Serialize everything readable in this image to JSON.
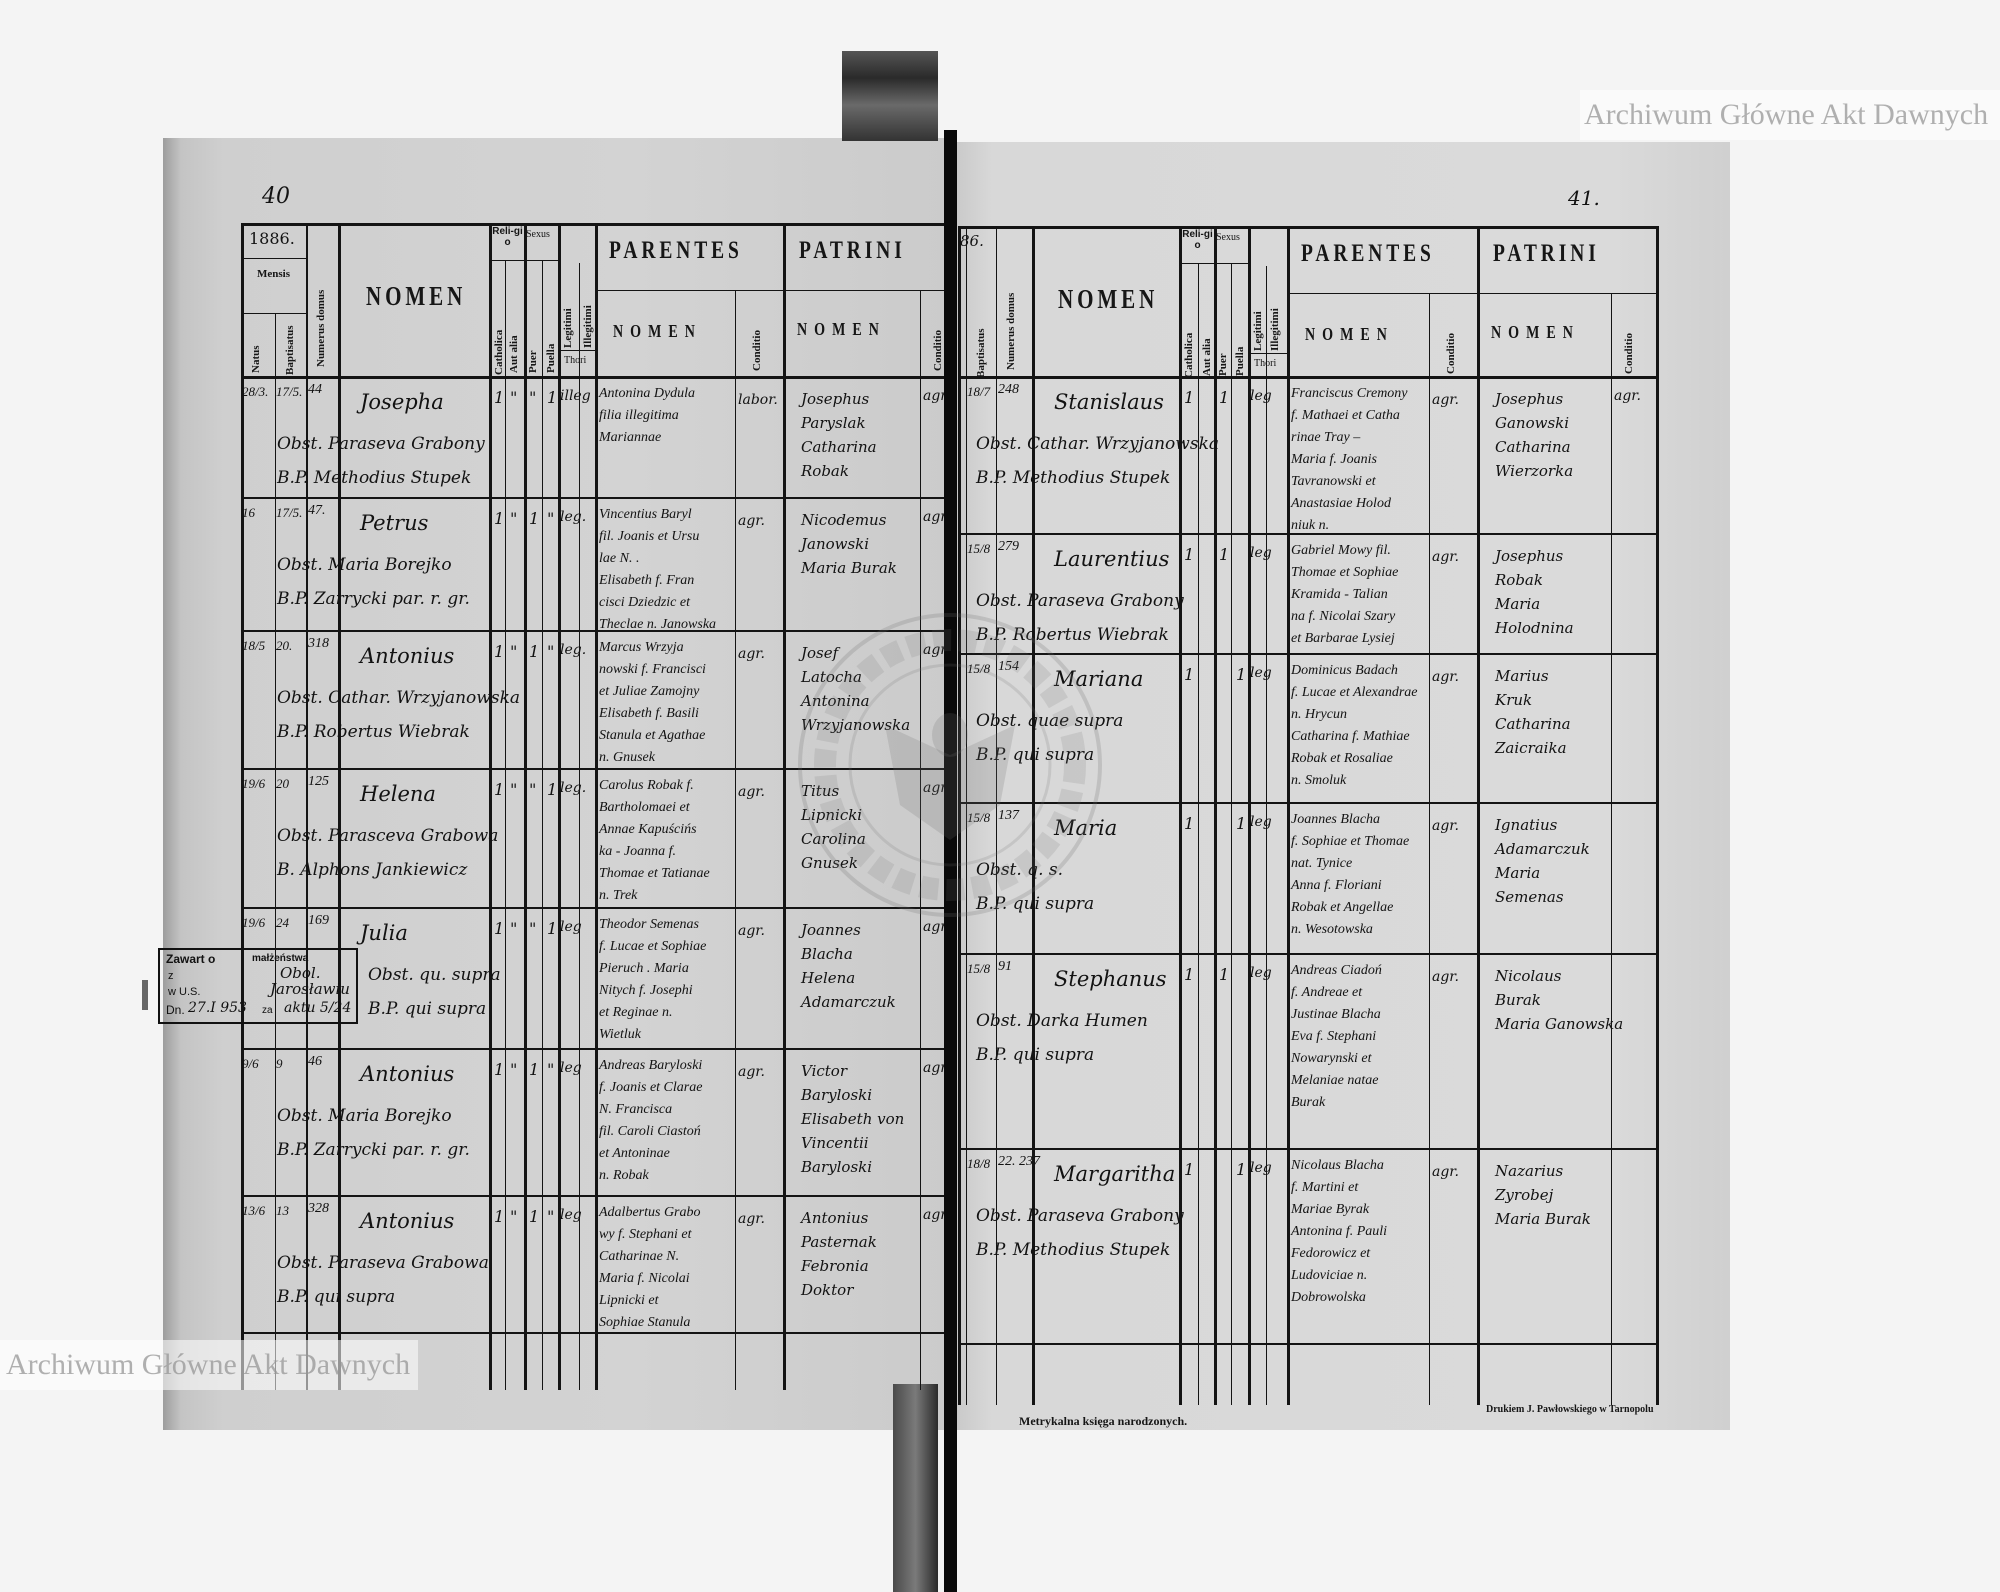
{
  "header": {
    "mensis": "Mensis",
    "natus": "Natus",
    "baptisatus": "Baptisatus",
    "numerus_domus": "Numerus domus",
    "nomen": "NOMEN",
    "religio": "Reli-gio",
    "catholica": "Catholica",
    "aut_alia": "Aut alia",
    "sexus": "Sexus",
    "puer": "Puer",
    "puella": "Puella",
    "legitimi": "Legitimi",
    "illegitimi": "Illegitimi",
    "thori": "Thori",
    "parentes": "PARENTES",
    "parentes_nomen": "NOMEN",
    "conditio": "Conditio",
    "patrini": "PATRINI",
    "patrini_nomen": "NOMEN"
  },
  "left_page": {
    "page_number": "40",
    "year": "1886.",
    "entries": [
      {
        "natus": "28/3.",
        "baptisatus": "17/5.",
        "domus": "44",
        "nomen": "Josepha",
        "obstetrix": "Obst. Paraseva Grabony",
        "baptizans": "B.P. Methodius Stupek",
        "marks": [
          "1",
          "\"",
          "\"",
          "1"
        ],
        "legitimitas": "illeg",
        "parentes": [
          "Antonina Dydula",
          "filia illegitima",
          "Mariannae"
        ],
        "parentes_conditio": "labor.",
        "patrini": [
          "Josephus",
          "Paryslak",
          "Catharina",
          "Robak"
        ],
        "patrini_conditio": "agr."
      },
      {
        "natus": "16",
        "baptisatus": "17/5.",
        "domus": "47.",
        "nomen": "Petrus",
        "obstetrix": "Obst. Maria Borejko",
        "baptizans": "B.P. Zarrycki par. r. gr.",
        "marks": [
          "1",
          "\"",
          "1",
          "\""
        ],
        "legitimitas": "leg.",
        "parentes": [
          "Vincentius Baryl",
          "fil. Joanis et Ursu",
          "lae N. .",
          "Elisabeth f. Fran",
          "cisci Dziedzic et",
          "Theclae n. Janowska"
        ],
        "parentes_conditio": "agr.",
        "patrini": [
          "Nicodemus",
          "Janowski",
          "Maria Burak"
        ],
        "patrini_conditio": "agr."
      },
      {
        "natus": "18/5",
        "baptisatus": "20.",
        "domus": "318",
        "nomen": "Antonius",
        "obstetrix": "Obst. Cathar. Wrzyjanowska",
        "baptizans": "B.P. Robertus Wiebrak",
        "marks": [
          "1",
          "\"",
          "1",
          "\""
        ],
        "legitimitas": "leg.",
        "parentes": [
          "Marcus Wrzyja",
          "nowski f. Francisci",
          "et Juliae Zamojny",
          "Elisabeth f. Basili",
          "Stanula et Agathae",
          "n. Gnusek"
        ],
        "parentes_conditio": "agr.",
        "patrini": [
          "Josef",
          "Latocha",
          "Antonina",
          "Wrzyjanowska"
        ],
        "patrini_conditio": "agr."
      },
      {
        "natus": "19/6",
        "baptisatus": "20",
        "domus": "125",
        "nomen": "Helena",
        "obstetrix": "Obst. Parasceva Grabowa",
        "baptizans": "B. Alphons Jankiewicz",
        "marks": [
          "1",
          "\"",
          "\"",
          "1"
        ],
        "legitimitas": "leg.",
        "parentes": [
          "Carolus Robak f.",
          "Bartholomaei et",
          "Annae Kapuścińs",
          "ka - Joanna f.",
          "Thomae et Tatianae",
          "n. Trek"
        ],
        "parentes_conditio": "agr.",
        "patrini": [
          "Titus",
          "Lipnicki",
          "Carolina",
          "Gnusek"
        ],
        "patrini_conditio": "agr."
      },
      {
        "natus": "19/6",
        "baptisatus": "24",
        "domus": "169",
        "nomen": "Julia",
        "obstetrix": "Obst. qu. supra",
        "baptizans": "B.P. qui supra",
        "marks": [
          "1",
          "\"",
          "\"",
          "1"
        ],
        "legitimitas": "leg",
        "parentes": [
          "Theodor Semenas",
          "f. Lucae et Sophiae",
          "Pieruch . Maria",
          "Nitych f. Josephi",
          "et Reginae n.",
          "Wietluk"
        ],
        "parentes_conditio": "agr.",
        "patrini": [
          "Joannes",
          "Blacha",
          "Helena",
          "Adamarczuk"
        ],
        "patrini_conditio": "agr."
      },
      {
        "natus": "9/6",
        "baptisatus": "9",
        "domus": "46",
        "nomen": "Antonius",
        "obstetrix": "Obst. Maria Borejko",
        "baptizans": "B.P. Zarrycki par. r. gr.",
        "marks": [
          "1",
          "\"",
          "1",
          "\""
        ],
        "legitimitas": "leg",
        "parentes": [
          "Andreas Baryloski",
          "f. Joanis et Clarae",
          "N. Francisca",
          "fil. Caroli Ciastoń",
          "et Antoninae",
          "n. Robak"
        ],
        "parentes_conditio": "agr.",
        "patrini": [
          "Victor",
          "Baryloski",
          "Elisabeth von",
          "Vincentii",
          "Baryloski"
        ],
        "patrini_conditio": "agr."
      },
      {
        "natus": "13/6",
        "baptisatus": "13",
        "domus": "328",
        "nomen": "Antonius",
        "obstetrix": "Obst. Paraseva Grabowa",
        "baptizans": "B.P. qui supra",
        "marks": [
          "1",
          "\"",
          "1",
          "\""
        ],
        "legitimitas": "leg",
        "parentes": [
          "Adalbertus Grabo",
          "wy f. Stephani et",
          "Catharinae N.",
          "Maria f. Nicolai",
          "Lipnicki et",
          "Sophiae Stanula"
        ],
        "parentes_conditio": "agr.",
        "patrini": [
          "Antonius",
          "Pasternak",
          "Febronia",
          "Doktor"
        ],
        "patrini_conditio": "agr."
      }
    ]
  },
  "right_page": {
    "page_number": "41.",
    "year": "86.",
    "entries": [
      {
        "baptisatus": "18/7",
        "domus": "248",
        "nomen": "Stanislaus",
        "obstetrix": "Obst. Cathar. Wrzyjanowska",
        "baptizans": "B.P. Methodius Stupek",
        "marks": [
          "1",
          "",
          "1",
          ""
        ],
        "legitimitas": "leg",
        "parentes": [
          "Franciscus Cremony",
          "f. Mathaei et Catha",
          "rinae Tray –",
          "Maria f. Joanis",
          "Tavranowski et",
          "Anastasiae Holod",
          "niuk n."
        ],
        "parentes_conditio": "agr.",
        "patrini": [
          "Josephus",
          "Ganowski",
          "Catharina",
          "Wierzorka"
        ],
        "patrini_conditio": "agr."
      },
      {
        "baptisatus": "15/8",
        "domus": "279",
        "nomen": "Laurentius",
        "obstetrix": "Obst. Paraseva Grabony",
        "baptizans": "B.P. Robertus Wiebrak",
        "marks": [
          "1",
          "",
          "1",
          ""
        ],
        "legitimitas": "leg",
        "parentes": [
          "Gabriel Mowy fil.",
          "Thomae et Sophiae",
          "Kramida - Talian",
          "na f. Nicolai Szary",
          "et Barbarae Lysiej"
        ],
        "parentes_conditio": "agr.",
        "patrini": [
          "Josephus",
          "Robak",
          "Maria",
          "Holodnina"
        ],
        "patrini_conditio": ""
      },
      {
        "baptisatus": "15/8",
        "domus": "154",
        "nomen": "Mariana",
        "obstetrix": "Obst. quae supra",
        "baptizans": "B.P. qui supra",
        "marks": [
          "1",
          "",
          "",
          "1"
        ],
        "legitimitas": "leg",
        "parentes": [
          "Dominicus Badach",
          "f. Lucae et Alexandrae",
          "n. Hrycun",
          "Catharina f. Mathiae",
          "Robak et Rosaliae",
          "n. Smoluk"
        ],
        "parentes_conditio": "agr.",
        "patrini": [
          "Marius",
          "Kruk",
          "Catharina",
          "Zaicraika"
        ],
        "patrini_conditio": ""
      },
      {
        "baptisatus": "15/8",
        "domus": "137",
        "nomen": "Maria",
        "obstetrix": "Obst. q. s.",
        "baptizans": "B.P. qui supra",
        "marks": [
          "1",
          "",
          "",
          "1"
        ],
        "legitimitas": "leg",
        "parentes": [
          "Joannes Blacha",
          "f. Sophiae et Thomae",
          "nat. Tynice",
          "Anna f. Floriani",
          "Robak et Angellae",
          "n. Wesotowska"
        ],
        "parentes_conditio": "agr.",
        "patrini": [
          "Ignatius",
          "Adamarczuk",
          "Maria",
          "Semenas"
        ],
        "patrini_conditio": ""
      },
      {
        "baptisatus": "15/8",
        "domus": "91",
        "nomen": "Stephanus",
        "obstetrix": "Obst. Darka Humen",
        "baptizans": "B.P. qui supra",
        "marks": [
          "1",
          "",
          "1",
          ""
        ],
        "legitimitas": "leg",
        "parentes": [
          "Andreas Ciadoń",
          "f. Andreae et",
          "Justinae Blacha",
          "Eva f. Stephani",
          "Nowarynski et",
          "Melaniae natae",
          "Burak"
        ],
        "parentes_conditio": "agr.",
        "patrini": [
          "Nicolaus",
          "Burak",
          "Maria Ganowska"
        ],
        "patrini_conditio": ""
      },
      {
        "baptisatus": "18/8",
        "domus": "22. 237",
        "nomen": "Margaritha",
        "obstetrix": "Obst. Paraseva Grabony",
        "baptizans": "B.P. Methodius Stupek",
        "marks": [
          "1",
          "",
          "",
          "1"
        ],
        "legitimitas": "leg",
        "parentes": [
          "Nicolaus Blacha",
          "f. Martini et",
          "Mariae Byrak",
          "Antonina f. Pauli",
          "Fedorowicz et",
          "Ludoviciae n.",
          "Dobrowolska"
        ],
        "parentes_conditio": "agr.",
        "patrini": [
          "Nazarius",
          "Zyrobej",
          "Maria Burak"
        ],
        "patrini_conditio": ""
      }
    ]
  },
  "stamp": {
    "label": "Zawart o",
    "label2": "małżeństwa",
    "z": "z",
    "z_value": "Obol.",
    "usc": "w U.S.",
    "usc_value": "Jarosławiu",
    "date_label": "Dn.",
    "date_value": "27.I 953",
    "za": "za",
    "aktu": "aktu 5/24"
  },
  "footer": {
    "title": "Metrykalna księga narodzonych.",
    "printer": "Drukiem J. Pawłowskiego w Tarnopolu"
  },
  "watermarks": {
    "text": "Archiwum Główne Akt Dawnych",
    "seal": "ARCHIWUM GŁÓWNE AKT DAWNYCH"
  }
}
